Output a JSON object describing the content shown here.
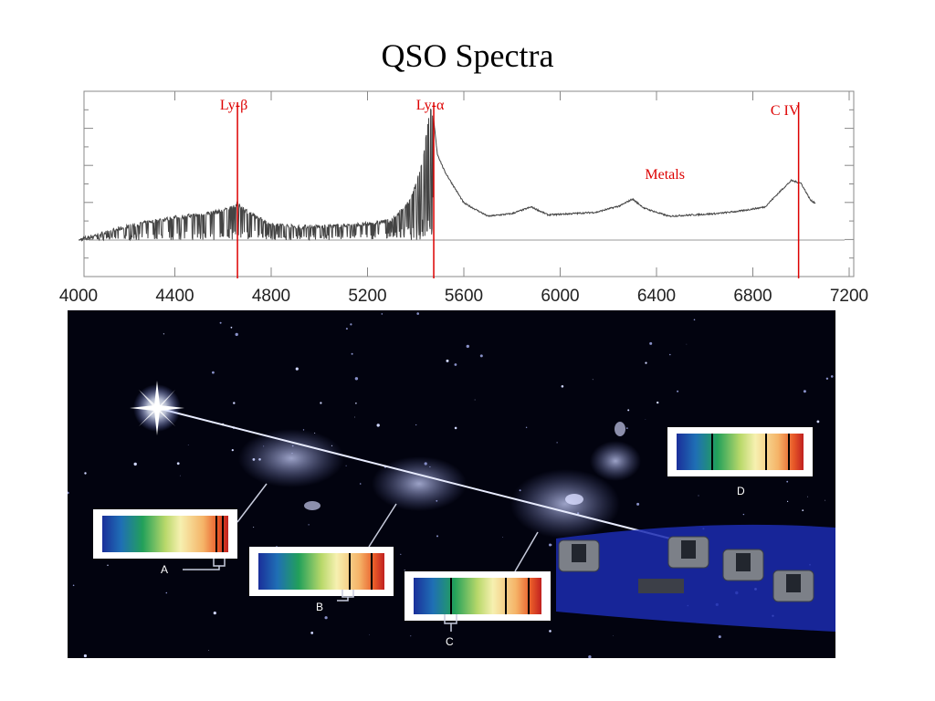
{
  "slide": {
    "title": "QSO Spectra"
  },
  "chart_data": {
    "type": "line",
    "xlabel": "",
    "ylabel": "",
    "xlim": [
      4000,
      7200
    ],
    "x_ticks": [
      4000,
      4400,
      4800,
      5200,
      5600,
      6000,
      6400,
      6800,
      7200
    ],
    "grid": false,
    "series": [
      {
        "x": [
          4000,
          4100,
          4200,
          4300,
          4400,
          4500,
          4600,
          4660,
          4720,
          4800,
          4900,
          5000,
          5100,
          5200,
          5300,
          5380,
          5430,
          5460,
          5475,
          5490,
          5520,
          5560,
          5600,
          5700,
          5800,
          5880,
          5950,
          6050,
          6150,
          6250,
          6300,
          6350,
          6450,
          6550,
          6650,
          6750,
          6850,
          6920,
          6960,
          7000,
          7040,
          7060
        ],
        "y": [
          0.0,
          0.05,
          0.1,
          0.14,
          0.17,
          0.19,
          0.22,
          0.27,
          0.19,
          0.12,
          0.1,
          0.1,
          0.11,
          0.12,
          0.15,
          0.3,
          0.6,
          1.0,
          0.9,
          0.65,
          0.52,
          0.4,
          0.28,
          0.18,
          0.2,
          0.25,
          0.19,
          0.2,
          0.21,
          0.26,
          0.31,
          0.24,
          0.18,
          0.19,
          0.2,
          0.22,
          0.25,
          0.38,
          0.45,
          0.43,
          0.3,
          0.28
        ]
      }
    ],
    "annotations": [
      {
        "label": "Ly-β",
        "x": 4660
      },
      {
        "label": "Ly-α",
        "x": 5475
      },
      {
        "label": "C IV",
        "x": 6990
      },
      {
        "label": "Metals",
        "x": 6450
      }
    ],
    "colors": {
      "line": "#444444",
      "marker": "#dd0000"
    }
  },
  "illustration": {
    "labels": {
      "A": "A",
      "B": "B",
      "C": "C",
      "D": "D"
    },
    "colors": {
      "background": "#02030f",
      "beam": "#e8ecff",
      "platform": "#1b2bb0"
    }
  }
}
